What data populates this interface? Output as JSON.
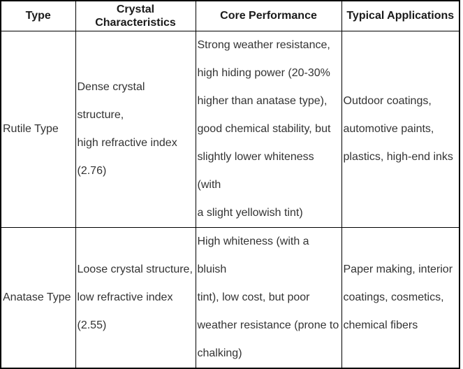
{
  "page": {
    "background_color": "#ffffff",
    "border_color": "#000000",
    "header_text_color": "#1a1a1a",
    "body_text_color": "#333333"
  },
  "table": {
    "columns": [
      {
        "id": "type",
        "label": "Type"
      },
      {
        "id": "crystal_characteristics",
        "label": "Crystal Characteristics"
      },
      {
        "id": "core_performance",
        "label": "Core Performance"
      },
      {
        "id": "typical_applications",
        "label": "Typical Applications"
      }
    ],
    "rows": [
      {
        "type": "Rutile Type",
        "crystal_characteristics": "Dense crystal structure,\nhigh refractive index\n(2.76)",
        "core_performance": "Strong weather resistance,\nhigh hiding power (20-30%\nhigher than anatase type),\ngood chemical stability, but\nslightly lower whiteness (with\na slight yellowish tint)",
        "typical_applications": "Outdoor coatings,\nautomotive paints,\nplastics, high-end inks"
      },
      {
        "type": "Anatase Type",
        "crystal_characteristics": "Loose crystal structure,\nlow refractive index\n(2.55)",
        "core_performance": "High whiteness (with a bluish\ntint), low cost, but poor\nweather resistance (prone to\nchalking)",
        "typical_applications": "Paper making, interior\ncoatings, cosmetics,\nchemical fibers"
      }
    ]
  }
}
